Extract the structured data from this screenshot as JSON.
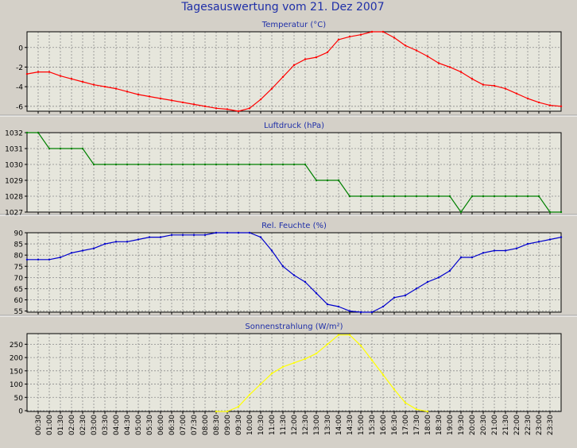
{
  "title": "Tagesauswertung vom 21. Dez 2007",
  "time_labels": [
    "00:30",
    "01:00",
    "01:30",
    "02:00",
    "02:30",
    "03:00",
    "03:30",
    "04:00",
    "04:30",
    "05:00",
    "05:30",
    "06:00",
    "06:30",
    "07:00",
    "07:30",
    "08:00",
    "08:30",
    "09:00",
    "09:30",
    "10:00",
    "10:30",
    "11:00",
    "11:30",
    "12:00",
    "12:30",
    "13:00",
    "13:30",
    "14:00",
    "14:30",
    "15:00",
    "15:30",
    "16:00",
    "16:30",
    "17:00",
    "17:30",
    "18:00",
    "18:30",
    "19:00",
    "19:30",
    "20:00",
    "20:30",
    "21:00",
    "21:30",
    "22:00",
    "22:30",
    "23:00",
    "23:30"
  ],
  "colors": {
    "background": "#d4d0c8",
    "plot_area": "#e6e6dc",
    "grid": "#8c8c8c",
    "title": "#1f2fa8",
    "axis_label": "#1f2fa8"
  },
  "chart_data": [
    {
      "type": "line",
      "title": "Temperatur (°C)",
      "color": "#ff0000",
      "ylim": [
        -6.5,
        1.6
      ],
      "yticks": [
        -6,
        -4,
        -2,
        0
      ],
      "xlim": [
        0,
        48
      ],
      "grid": true,
      "x": [
        0,
        1,
        2,
        3,
        4,
        5,
        6,
        7,
        8,
        9,
        10,
        11,
        12,
        13,
        14,
        15,
        16,
        17,
        18,
        19,
        20,
        21,
        22,
        23,
        24,
        25,
        26,
        27,
        28,
        29,
        30,
        31,
        32,
        33,
        34,
        35,
        36,
        37,
        38,
        39,
        40,
        41,
        42,
        43,
        44,
        45,
        46,
        47,
        48
      ],
      "y": [
        -2.7,
        -2.5,
        -2.5,
        -2.9,
        -3.2,
        -3.5,
        -3.8,
        -4.0,
        -4.2,
        -4.5,
        -4.8,
        -5.0,
        -5.2,
        -5.4,
        -5.6,
        -5.8,
        -6.0,
        -6.2,
        -6.3,
        -6.5,
        -6.2,
        -5.3,
        -4.2,
        -3.0,
        -1.8,
        -1.2,
        -1.0,
        -0.5,
        0.8,
        1.1,
        1.3,
        1.6,
        1.6,
        1.0,
        0.2,
        -0.3,
        -0.9,
        -1.6,
        -2.0,
        -2.5,
        -3.2,
        -3.8,
        -3.9,
        -4.2,
        -4.7,
        -5.2,
        -5.6,
        -5.9,
        -6.0
      ]
    },
    {
      "type": "line",
      "title": "Luftdruck (hPa)",
      "color": "#008000",
      "ylim": [
        1027,
        1032
      ],
      "yticks": [
        1027,
        1028,
        1029,
        1030,
        1031,
        1032
      ],
      "xlim": [
        0,
        48
      ],
      "grid": true,
      "x": [
        0,
        1,
        2,
        3,
        4,
        5,
        6,
        7,
        8,
        9,
        10,
        11,
        12,
        13,
        14,
        15,
        16,
        17,
        18,
        19,
        20,
        21,
        22,
        23,
        24,
        25,
        26,
        27,
        28,
        29,
        30,
        31,
        32,
        33,
        34,
        35,
        36,
        37,
        38,
        39,
        40,
        41,
        42,
        43,
        44,
        45,
        46,
        47,
        48
      ],
      "y": [
        1032,
        1032,
        1031,
        1031,
        1031,
        1031,
        1030,
        1030,
        1030,
        1030,
        1030,
        1030,
        1030,
        1030,
        1030,
        1030,
        1030,
        1030,
        1030,
        1030,
        1030,
        1030,
        1030,
        1030,
        1030,
        1030,
        1029,
        1029,
        1029,
        1028,
        1028,
        1028,
        1028,
        1028,
        1028,
        1028,
        1028,
        1028,
        1028,
        1027,
        1028,
        1028,
        1028,
        1028,
        1028,
        1028,
        1028,
        1027,
        1027
      ]
    },
    {
      "type": "line",
      "title": "Rel. Feuchte (%)",
      "color": "#0000cc",
      "ylim": [
        54.5,
        90
      ],
      "yticks": [
        55,
        60,
        65,
        70,
        75,
        80,
        85,
        90
      ],
      "xlim": [
        0,
        48
      ],
      "grid": true,
      "x": [
        0,
        1,
        2,
        3,
        4,
        5,
        6,
        7,
        8,
        9,
        10,
        11,
        12,
        13,
        14,
        15,
        16,
        17,
        18,
        19,
        20,
        21,
        22,
        23,
        24,
        25,
        26,
        27,
        28,
        29,
        30,
        31,
        32,
        33,
        34,
        35,
        36,
        37,
        38,
        39,
        40,
        41,
        42,
        43,
        44,
        45,
        46,
        47,
        48
      ],
      "y": [
        78,
        78,
        78,
        79,
        81,
        82,
        83,
        85,
        86,
        86,
        87,
        88,
        88,
        89,
        89,
        89,
        89,
        90,
        90,
        90,
        90,
        88,
        82,
        75,
        71,
        68,
        63,
        58,
        57,
        55,
        54.5,
        54.5,
        57,
        61,
        62,
        65,
        68,
        70,
        73,
        79,
        79,
        81,
        82,
        82,
        83,
        85,
        86,
        87,
        88
      ]
    },
    {
      "type": "line",
      "title": "Sonnenstrahlung (W/m²)",
      "color": "#ffff00",
      "ylim": [
        -3,
        290
      ],
      "yticks": [
        0,
        50,
        100,
        150,
        200,
        250
      ],
      "xlim": [
        0,
        48
      ],
      "grid": true,
      "x": [
        17,
        18,
        19,
        20,
        21,
        22,
        23,
        24,
        25,
        26,
        27,
        28,
        29,
        30,
        31,
        32,
        33,
        34,
        35,
        36
      ],
      "y": [
        -3,
        -3,
        15,
        60,
        100,
        140,
        165,
        180,
        195,
        215,
        250,
        285,
        285,
        245,
        190,
        135,
        80,
        30,
        5,
        -3
      ]
    }
  ]
}
